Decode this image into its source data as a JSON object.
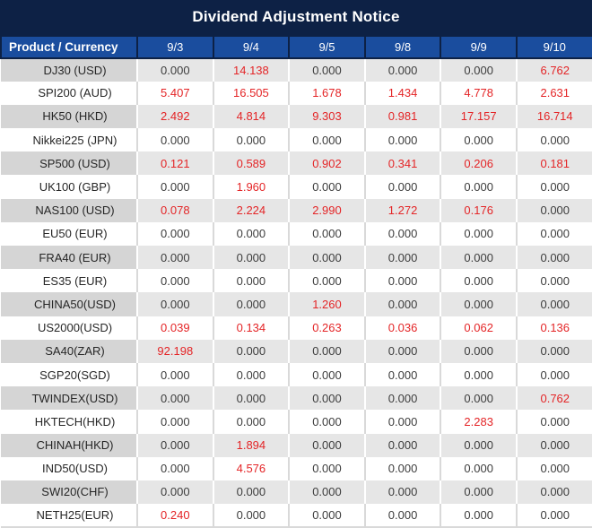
{
  "title": "Dividend Adjustment Notice",
  "colors": {
    "title_bg": "#0d2145",
    "header_bg": "#1a4d9e",
    "stripe_product_bg": "#d5d5d5",
    "stripe_value_bg": "#e6e6e6",
    "nonzero_value": "#e42527",
    "zero_value": "#3d3d3d"
  },
  "table": {
    "columns": [
      "Product / Currency",
      "9/3",
      "9/4",
      "9/5",
      "9/8",
      "9/9",
      "9/10"
    ],
    "rows": [
      {
        "product": "DJ30 (USD)",
        "values": [
          "0.000",
          "14.138",
          "0.000",
          "0.000",
          "0.000",
          "6.762"
        ]
      },
      {
        "product": "SPI200 (AUD)",
        "values": [
          "5.407",
          "16.505",
          "1.678",
          "1.434",
          "4.778",
          "2.631"
        ]
      },
      {
        "product": "HK50 (HKD)",
        "values": [
          "2.492",
          "4.814",
          "9.303",
          "0.981",
          "17.157",
          "16.714"
        ]
      },
      {
        "product": "Nikkei225 (JPN)",
        "values": [
          "0.000",
          "0.000",
          "0.000",
          "0.000",
          "0.000",
          "0.000"
        ]
      },
      {
        "product": "SP500 (USD)",
        "values": [
          "0.121",
          "0.589",
          "0.902",
          "0.341",
          "0.206",
          "0.181"
        ]
      },
      {
        "product": "UK100 (GBP)",
        "values": [
          "0.000",
          "1.960",
          "0.000",
          "0.000",
          "0.000",
          "0.000"
        ]
      },
      {
        "product": "NAS100 (USD)",
        "values": [
          "0.078",
          "2.224",
          "2.990",
          "1.272",
          "0.176",
          "0.000"
        ]
      },
      {
        "product": "EU50 (EUR)",
        "values": [
          "0.000",
          "0.000",
          "0.000",
          "0.000",
          "0.000",
          "0.000"
        ]
      },
      {
        "product": "FRA40 (EUR)",
        "values": [
          "0.000",
          "0.000",
          "0.000",
          "0.000",
          "0.000",
          "0.000"
        ]
      },
      {
        "product": "ES35 (EUR)",
        "values": [
          "0.000",
          "0.000",
          "0.000",
          "0.000",
          "0.000",
          "0.000"
        ]
      },
      {
        "product": "CHINA50(USD)",
        "values": [
          "0.000",
          "0.000",
          "1.260",
          "0.000",
          "0.000",
          "0.000"
        ]
      },
      {
        "product": "US2000(USD)",
        "values": [
          "0.039",
          "0.134",
          "0.263",
          "0.036",
          "0.062",
          "0.136"
        ]
      },
      {
        "product": "SA40(ZAR)",
        "values": [
          "92.198",
          "0.000",
          "0.000",
          "0.000",
          "0.000",
          "0.000"
        ]
      },
      {
        "product": "SGP20(SGD)",
        "values": [
          "0.000",
          "0.000",
          "0.000",
          "0.000",
          "0.000",
          "0.000"
        ]
      },
      {
        "product": "TWINDEX(USD)",
        "values": [
          "0.000",
          "0.000",
          "0.000",
          "0.000",
          "0.000",
          "0.762"
        ]
      },
      {
        "product": "HKTECH(HKD)",
        "values": [
          "0.000",
          "0.000",
          "0.000",
          "0.000",
          "2.283",
          "0.000"
        ]
      },
      {
        "product": "CHINAH(HKD)",
        "values": [
          "0.000",
          "1.894",
          "0.000",
          "0.000",
          "0.000",
          "0.000"
        ]
      },
      {
        "product": "IND50(USD)",
        "values": [
          "0.000",
          "4.576",
          "0.000",
          "0.000",
          "0.000",
          "0.000"
        ]
      },
      {
        "product": "SWI20(CHF)",
        "values": [
          "0.000",
          "0.000",
          "0.000",
          "0.000",
          "0.000",
          "0.000"
        ]
      },
      {
        "product": "NETH25(EUR)",
        "values": [
          "0.240",
          "0.000",
          "0.000",
          "0.000",
          "0.000",
          "0.000"
        ]
      }
    ]
  }
}
